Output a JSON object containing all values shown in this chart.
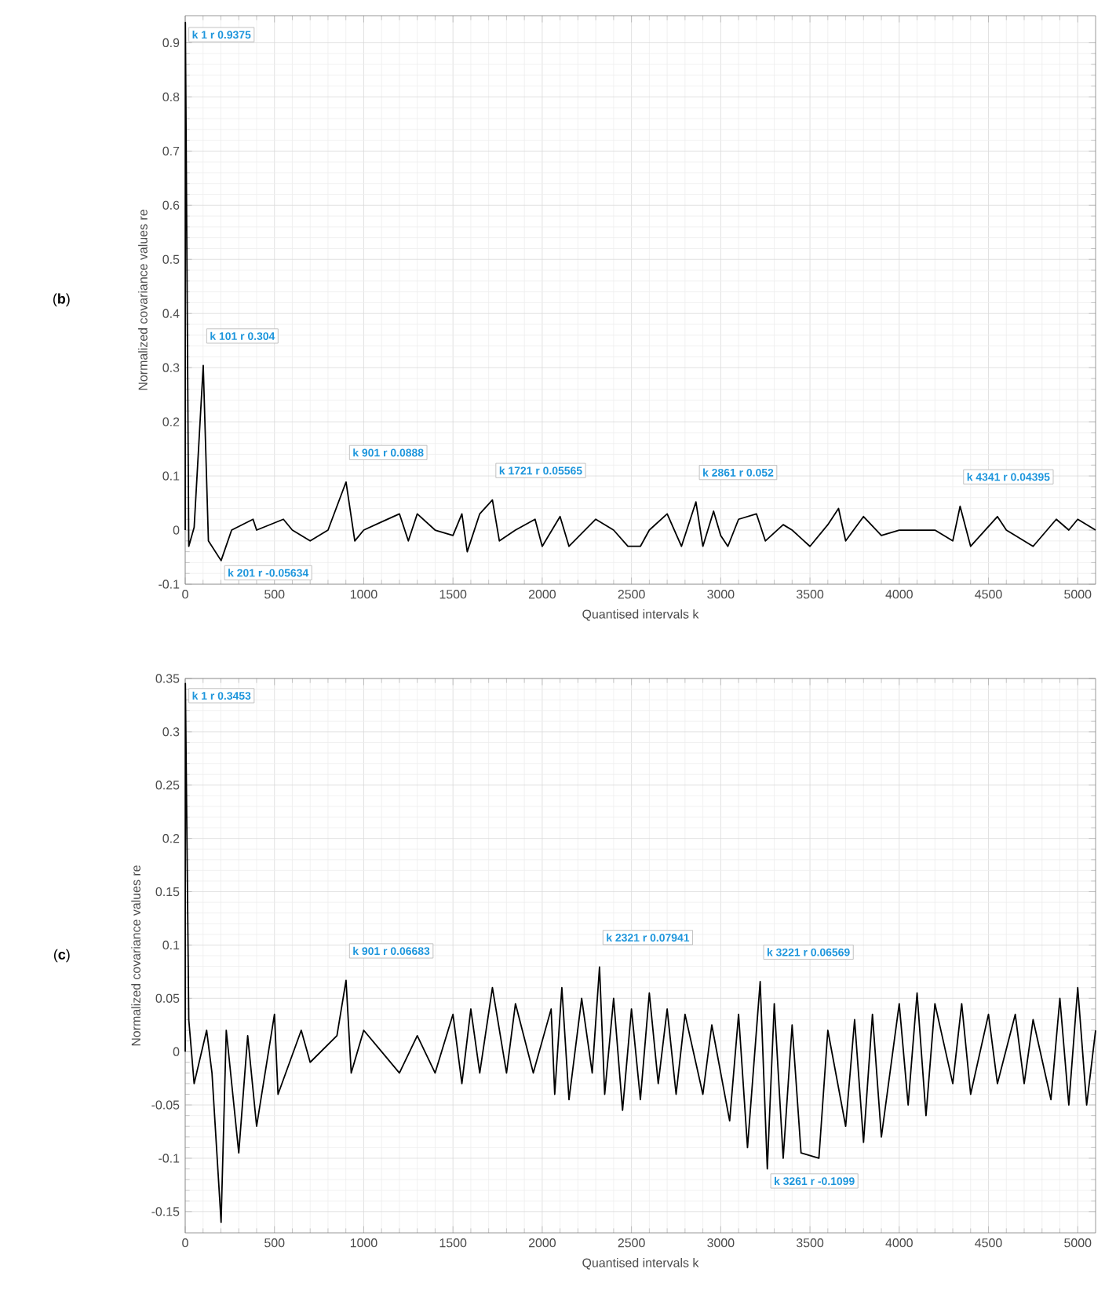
{
  "chart_data": [
    {
      "type": "line",
      "xlabel": "Quantised intervals k",
      "ylabel": "Normalized covariance values re",
      "xlim": [
        0,
        5100
      ],
      "ylim": [
        -0.1,
        0.95
      ],
      "xticks": [
        0,
        500,
        1000,
        1500,
        2000,
        2500,
        3000,
        3500,
        4000,
        4500,
        5000
      ],
      "yticks": [
        -0.1,
        0,
        0.1,
        0.2,
        0.3,
        0.4,
        0.5,
        0.6,
        0.7,
        0.8,
        0.9
      ],
      "grid": true,
      "line_style": "solid",
      "x": [
        0,
        1,
        20,
        50,
        101,
        130,
        201,
        260,
        380,
        400,
        550,
        600,
        700,
        800,
        901,
        950,
        1000,
        1100,
        1200,
        1250,
        1300,
        1400,
        1500,
        1550,
        1580,
        1650,
        1721,
        1760,
        1850,
        1960,
        2000,
        2100,
        2150,
        2300,
        2400,
        2480,
        2550,
        2600,
        2700,
        2780,
        2861,
        2900,
        2960,
        3000,
        3040,
        3100,
        3200,
        3250,
        3350,
        3400,
        3500,
        3600,
        3660,
        3700,
        3800,
        3900,
        4000,
        4200,
        4300,
        4341,
        4400,
        4550,
        4600,
        4750,
        4880,
        4950,
        5000,
        5100
      ],
      "series": [
        {
          "color": "#000000",
          "values": [
            0,
            0.9375,
            -0.03,
            0.005,
            0.304,
            -0.02,
            -0.05634,
            0,
            0.02,
            0,
            0.02,
            0,
            -0.02,
            0,
            0.0888,
            -0.02,
            0,
            0.015,
            0.03,
            -0.02,
            0.03,
            0,
            -0.01,
            0.03,
            -0.04,
            0.03,
            0.05565,
            -0.02,
            0,
            0.02,
            -0.03,
            0.025,
            -0.03,
            0.02,
            0,
            -0.03,
            -0.03,
            0,
            0.03,
            -0.03,
            0.052,
            -0.03,
            0.035,
            -0.01,
            -0.03,
            0.02,
            0.03,
            -0.02,
            0.01,
            0,
            -0.03,
            0.01,
            0.04,
            -0.02,
            0.025,
            -0.01,
            0,
            0,
            -0.02,
            0.04395,
            -0.03,
            0.025,
            0,
            -0.03,
            0.02,
            0,
            0.02,
            0
          ]
        }
      ],
      "annotations": [
        "(**b**)",
        {
          "text": "k 1 r 0.9375",
          "x": 1,
          "y": 0.9375
        },
        {
          "text": "k 101 r 0.304",
          "x": 101,
          "y": 0.304
        },
        {
          "text": "k 201 r -0.05634",
          "x": 201,
          "y": -0.05634
        },
        {
          "text": "k 901 r 0.0888",
          "x": 901,
          "y": 0.0888
        },
        {
          "text": "k 1721 r 0.05565",
          "x": 1721,
          "y": 0.05565
        },
        {
          "text": "k 2861 r 0.052",
          "x": 2861,
          "y": 0.052
        },
        {
          "text": "k 4341 r 0.04395",
          "x": 4341,
          "y": 0.04395
        }
      ]
    },
    {
      "type": "line",
      "xlabel": "Quantised intervals k",
      "ylabel": "Normalized covariance values re",
      "xlim": [
        0,
        5100
      ],
      "ylim": [
        -0.17,
        0.35
      ],
      "xticks": [
        0,
        500,
        1000,
        1500,
        2000,
        2500,
        3000,
        3500,
        4000,
        4500,
        5000
      ],
      "yticks": [
        -0.15,
        -0.1,
        -0.05,
        0,
        0.05,
        0.1,
        0.15,
        0.2,
        0.25,
        0.3,
        0.35
      ],
      "grid": true,
      "line_style": "solid",
      "x": [
        0,
        1,
        20,
        50,
        120,
        150,
        201,
        230,
        300,
        350,
        400,
        500,
        520,
        650,
        700,
        850,
        901,
        930,
        1000,
        1100,
        1200,
        1300,
        1400,
        1500,
        1550,
        1600,
        1650,
        1721,
        1800,
        1850,
        1950,
        2050,
        2070,
        2110,
        2150,
        2221,
        2280,
        2321,
        2350,
        2400,
        2450,
        2500,
        2550,
        2600,
        2650,
        2700,
        2750,
        2800,
        2900,
        2950,
        3050,
        3100,
        3150,
        3221,
        3261,
        3300,
        3350,
        3400,
        3450,
        3550,
        3600,
        3700,
        3750,
        3800,
        3850,
        3900,
        4000,
        4050,
        4100,
        4150,
        4200,
        4300,
        4350,
        4400,
        4500,
        4550,
        4650,
        4700,
        4750,
        4850,
        4900,
        4950,
        5000,
        5050,
        5100
      ],
      "series": [
        {
          "color": "#000000",
          "values": [
            0,
            0.3453,
            0.03,
            -0.03,
            0.02,
            -0.02,
            -0.16,
            0.02,
            -0.095,
            0.015,
            -0.07,
            0.035,
            -0.04,
            0.02,
            -0.01,
            0.015,
            0.06683,
            -0.02,
            0.02,
            0,
            -0.02,
            0.015,
            -0.02,
            0.035,
            -0.03,
            0.04,
            -0.02,
            0.06,
            -0.02,
            0.045,
            -0.02,
            0.04,
            -0.04,
            0.06,
            -0.045,
            0.05,
            -0.02,
            0.07941,
            -0.04,
            0.05,
            -0.055,
            0.04,
            -0.045,
            0.055,
            -0.03,
            0.04,
            -0.04,
            0.035,
            -0.04,
            0.025,
            -0.065,
            0.035,
            -0.09,
            0.06569,
            -0.1099,
            0.045,
            -0.1,
            0.025,
            -0.095,
            -0.1,
            0.02,
            -0.07,
            0.03,
            -0.085,
            0.035,
            -0.08,
            0.045,
            -0.05,
            0.055,
            -0.06,
            0.045,
            -0.03,
            0.045,
            -0.04,
            0.035,
            -0.03,
            0.035,
            -0.03,
            0.03,
            -0.045,
            0.05,
            -0.05,
            0.06,
            -0.05,
            0.02
          ]
        }
      ],
      "annotations": [
        "(**c**)",
        {
          "text": "k 1 r 0.3453",
          "x": 1,
          "y": 0.3453
        },
        {
          "text": "k 901 r 0.06683",
          "x": 901,
          "y": 0.06683
        },
        {
          "text": "k 2321 r 0.07941",
          "x": 2321,
          "y": 0.07941
        },
        {
          "text": "k 3221 r 0.06569",
          "x": 3221,
          "y": 0.06569
        },
        {
          "text": "k 3261 r -0.1099",
          "x": 3261,
          "y": -0.1099
        }
      ]
    }
  ]
}
